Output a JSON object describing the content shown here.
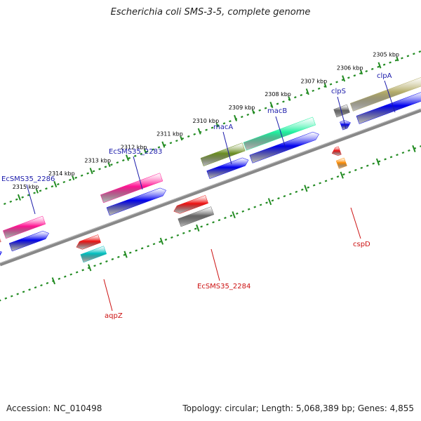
{
  "title": "Escherichia coli SMS-3-5, complete genome",
  "footer": {
    "accession": "Accession: NC_010498",
    "stats": "Topology: circular; Length: 5,068,389 bp; Genes: 4,855"
  },
  "ruler": {
    "major_ticks": [
      {
        "label": "2315 kbp"
      },
      {
        "label": "2314 kbp"
      },
      {
        "label": "2313 kbp"
      },
      {
        "label": "2312 kbp"
      },
      {
        "label": "2311 kbp"
      },
      {
        "label": "2310 kbp"
      },
      {
        "label": "2309 kbp"
      },
      {
        "label": "2308 kbp"
      },
      {
        "label": "2307 kbp"
      },
      {
        "label": "2306 kbp"
      },
      {
        "label": "2305 kbp"
      }
    ]
  },
  "colors": {
    "backbone": "#888888",
    "ruler": "#228B22",
    "forward_label": "#1a1aaa",
    "reverse_label": "#cc1111",
    "cds": "#0000ee"
  },
  "genes": [
    {
      "name": "EcSMS35_2286",
      "strand": "forward",
      "color": "#ff1493"
    },
    {
      "name": "EcSMS35_2283",
      "strand": "forward",
      "color": "#ff1493"
    },
    {
      "name": "macA",
      "strand": "forward",
      "color": "#6b8e23"
    },
    {
      "name": "macB",
      "strand": "forward",
      "color": "#20f0a0"
    },
    {
      "name": "clpS",
      "strand": "forward",
      "color": "#666666"
    },
    {
      "name": "clpA",
      "strand": "forward",
      "color": "#b5ad6a"
    },
    {
      "name": "aqpZ",
      "strand": "reverse",
      "color": "#ee1111",
      "cds_color": "#00c0c0"
    },
    {
      "name": "EcSMS35_2284",
      "strand": "reverse",
      "color": "#ee1111",
      "cds_color": "#666666"
    },
    {
      "name": "cspD",
      "strand": "reverse",
      "color": "#ee1111",
      "cds_color": "#ff8c00"
    }
  ]
}
